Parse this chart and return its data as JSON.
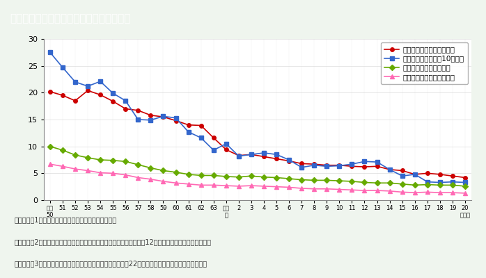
{
  "title": "第１－７－１図　母子保健関係指標の推移",
  "title_bg": "#8B7355",
  "background": "#EFF5EE",
  "plot_background": "#FFFFFF",
  "xlabel_bottom": "昭和 51 52 53 54 55 56 57 58 59 60 61 62 63 平成 2  3  4  5  6  7  8  9  10 11 12 13 14 15 16 17 18 19 20（年）\n50                                      元",
  "ylabel": "",
  "ylim": [
    0,
    30
  ],
  "yticks": [
    0,
    5,
    10,
    15,
    20,
    25,
    30
  ],
  "note_lines": [
    "（備考）　1．厚生労働省「人口動態統計」より作成。",
    "　　　　　2．妊産婦死亡率における出産は，出生数に死産数（妊娠満12週以後）を加えたものである。",
    "　　　　　3．周産期死亡率における出産は，出生数に妊娠満22週以後の死産数を加えたものである。"
  ],
  "series": {
    "perinatal": {
      "label": "周産期死亡率（出産千対）",
      "color": "#CC0000",
      "marker": "o",
      "markersize": 4,
      "data": [
        20.2,
        19.5,
        18.5,
        20.4,
        19.6,
        18.4,
        17.0,
        16.7,
        15.8,
        15.5,
        14.8,
        14.0,
        13.9,
        11.6,
        9.4,
        8.3,
        8.5,
        8.1,
        7.7,
        7.3,
        6.8,
        6.7,
        6.5,
        6.5,
        6.3,
        6.2,
        6.3,
        5.7,
        5.5,
        4.8,
        5.0,
        4.8,
        4.5,
        4.2
      ]
    },
    "maternal": {
      "label": "妊産婦死亡率（出産10万対）",
      "color": "#3366CC",
      "marker": "s",
      "markersize": 4,
      "data": [
        27.5,
        24.7,
        22.0,
        21.2,
        22.1,
        19.9,
        18.5,
        15.0,
        14.9,
        15.6,
        15.3,
        12.7,
        11.6,
        9.3,
        10.5,
        8.2,
        8.5,
        8.8,
        8.5,
        7.5,
        6.1,
        6.5,
        6.3,
        6.4,
        6.7,
        7.2,
        7.1,
        5.7,
        4.5,
        4.8,
        3.4,
        3.3,
        3.4,
        3.3
      ]
    },
    "infant": {
      "label": "乳児死亡率（出生千対）",
      "color": "#66AA00",
      "marker": "D",
      "markersize": 4,
      "data": [
        10.0,
        9.3,
        8.4,
        7.9,
        7.5,
        7.4,
        7.2,
        6.6,
        6.0,
        5.5,
        5.2,
        4.8,
        4.6,
        4.6,
        4.4,
        4.3,
        4.5,
        4.3,
        4.2,
        4.0,
        3.8,
        3.7,
        3.7,
        3.6,
        3.5,
        3.3,
        3.2,
        3.2,
        3.0,
        2.8,
        2.9,
        2.8,
        2.8,
        2.6
      ]
    },
    "neonatal": {
      "label": "新生児死亡率（出生千対）",
      "color": "#FF69B4",
      "marker": "^",
      "markersize": 4,
      "data": [
        6.7,
        6.3,
        5.8,
        5.5,
        5.1,
        5.0,
        4.7,
        4.2,
        3.9,
        3.5,
        3.2,
        3.0,
        2.8,
        2.8,
        2.7,
        2.6,
        2.7,
        2.6,
        2.5,
        2.4,
        2.2,
        2.1,
        2.1,
        2.0,
        1.9,
        1.8,
        1.8,
        1.7,
        1.5,
        1.4,
        1.5,
        1.4,
        1.4,
        1.3
      ]
    }
  },
  "x_start_year": 1975,
  "n_points": 34
}
